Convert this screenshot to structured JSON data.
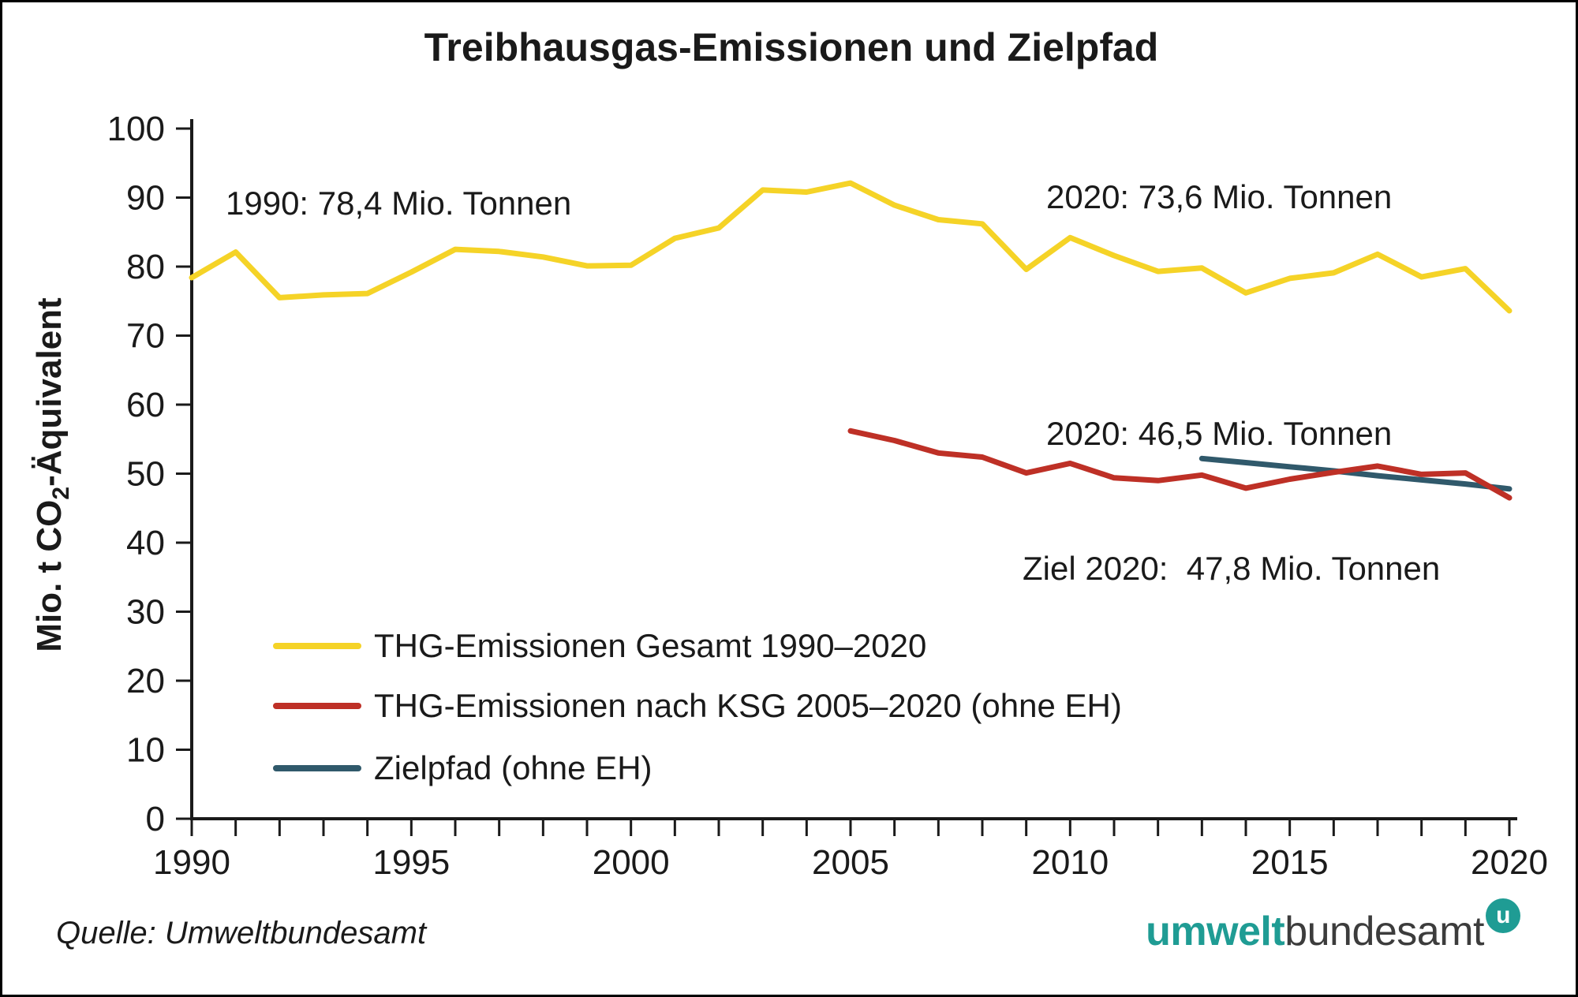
{
  "title": "Treibhausgas-Emissionen und Zielpfad",
  "chart_data": {
    "type": "line",
    "title": "Treibhausgas-Emissionen und Zielpfad",
    "xlabel": "",
    "ylabel": "Mio. t CO2-Äquivalent",
    "ylabel_parts": {
      "pre": "Mio. t CO",
      "sub": "2",
      "post": "-Äquivalent"
    },
    "xlim": [
      1990,
      2020
    ],
    "ylim": [
      0,
      100
    ],
    "y_ticks": [
      0,
      10,
      20,
      30,
      40,
      50,
      60,
      70,
      80,
      90,
      100
    ],
    "x_major_ticks": [
      1990,
      1995,
      2000,
      2005,
      2010,
      2015,
      2020
    ],
    "x_minor_tick_step": 1,
    "grid": false,
    "legend_position": "inside-lower-left",
    "axis_color": "#1a1a1a",
    "series": [
      {
        "name": "THG-Emissionen Gesamt 1990–2020",
        "color": "#F5D327",
        "x_start": 1990,
        "z": 1,
        "values": [
          78.4,
          82.1,
          75.5,
          75.9,
          76.1,
          79.2,
          82.5,
          82.2,
          81.4,
          80.1,
          80.2,
          84.1,
          85.6,
          91.1,
          90.8,
          92.1,
          88.9,
          86.8,
          86.2,
          79.6,
          84.2,
          81.6,
          79.3,
          79.8,
          76.2,
          78.3,
          79.1,
          81.8,
          78.5,
          79.7,
          73.6
        ]
      },
      {
        "name": "THG-Emissionen nach KSG 2005–2020 (ohne EH)",
        "color": "#BE3026",
        "x_start": 2005,
        "z": 3,
        "values": [
          56.2,
          54.8,
          53.0,
          52.4,
          50.1,
          51.5,
          49.4,
          49.0,
          49.8,
          47.9,
          49.2,
          50.2,
          51.1,
          49.9,
          50.1,
          46.5
        ]
      },
      {
        "name": "Zielpfad (ohne EH)",
        "color": "#30596B",
        "x_start": 2013,
        "z": 2,
        "values": [
          52.2,
          51.6,
          51.0,
          50.4,
          49.7,
          49.1,
          48.5,
          47.8
        ]
      }
    ],
    "annotations": [
      {
        "text": "1990: 78,4 Mio. Tonnen"
      },
      {
        "text": "2020: 73,6 Mio. Tonnen"
      },
      {
        "text": "2020: 46,5 Mio. Tonnen"
      },
      {
        "text": "Ziel 2020:  47,8 Mio. Tonnen"
      }
    ]
  },
  "footer": {
    "source": "Quelle: Umweltbundesamt",
    "logo": {
      "bold_part": "umwelt",
      "light_part": "bundesamt",
      "badge_letter": "u",
      "teal": "#1F9C94",
      "dark": "#3C3C3C"
    }
  }
}
